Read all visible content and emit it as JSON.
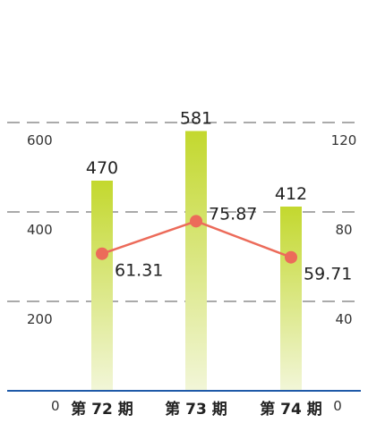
{
  "chart_data": {
    "type": "bar",
    "title": "",
    "categories": [
      "第 72 期",
      "第 73 期",
      "第 74 期"
    ],
    "series": [
      {
        "type": "bar",
        "axis": "left",
        "values": [
          470,
          581,
          412
        ],
        "labels": [
          "470",
          "581",
          "412"
        ]
      },
      {
        "type": "line",
        "axis": "right",
        "values": [
          61.31,
          75.87,
          59.71
        ],
        "labels": [
          "61.31",
          "75.87",
          "59.71"
        ]
      }
    ],
    "y_left": {
      "ylim": [
        0,
        750
      ],
      "ticks": [
        0,
        200,
        400,
        600
      ],
      "tick_labels": [
        "0",
        "200",
        "400",
        "600"
      ]
    },
    "y_right": {
      "ylim": [
        0,
        150
      ],
      "ticks": [
        0,
        40,
        80,
        120
      ],
      "tick_labels": [
        "0",
        "40",
        "80",
        "120"
      ]
    },
    "grid": true,
    "grid_style": "dashed",
    "colors": {
      "bar_top": "#c3d82e",
      "bar_bottom": "#f2f6d8",
      "line": "#ec6b5a",
      "baseline": "#1f5aa8",
      "grid": "#555555"
    }
  }
}
